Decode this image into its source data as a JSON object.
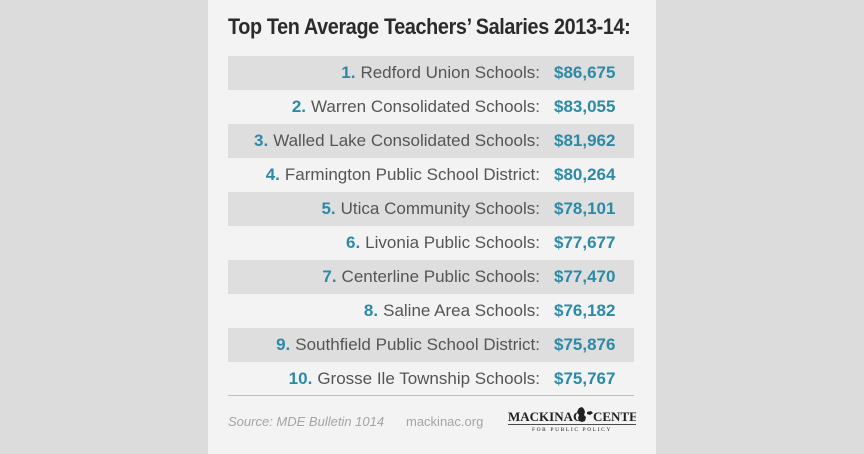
{
  "title": "Top Ten Average Teachers’ Salaries 2013-14:",
  "chart_data": {
    "type": "table",
    "title": "Top Ten Average Teachers’ Salaries 2013-14:",
    "rows": [
      {
        "rank": "1.",
        "name": "Redford Union Schools:",
        "value": "$86,675"
      },
      {
        "rank": "2.",
        "name": "Warren Consolidated Schools:",
        "value": "$83,055"
      },
      {
        "rank": "3.",
        "name": "Walled Lake Consolidated Schools:",
        "value": "$81,962"
      },
      {
        "rank": "4.",
        "name": "Farmington Public School District:",
        "value": "$80,264"
      },
      {
        "rank": "5.",
        "name": "Utica Community Schools:",
        "value": "$78,101"
      },
      {
        "rank": "6.",
        "name": "Livonia Public Schools:",
        "value": "$77,677"
      },
      {
        "rank": "7.",
        "name": "Centerline Public Schools:",
        "value": "$77,470"
      },
      {
        "rank": "8.",
        "name": "Saline Area Schools:",
        "value": "$76,182"
      },
      {
        "rank": "9.",
        "name": "Southfield Public School District:",
        "value": "$75,876"
      },
      {
        "rank": "10.",
        "name": "Grosse Ile Township Schools:",
        "value": "$75,767"
      }
    ]
  },
  "footer": {
    "source": "Source: MDE Bulletin 1014",
    "site": "mackinac.org",
    "logo_text_left": "MACKINAC",
    "logo_text_right": "CENTER",
    "logo_subtext": "FOR PUBLIC POLICY"
  },
  "colors": {
    "accent": "#2d8aa7",
    "shaded_row": "#dedede",
    "card": "#f3f3f3",
    "background": "#dcdcdc"
  }
}
